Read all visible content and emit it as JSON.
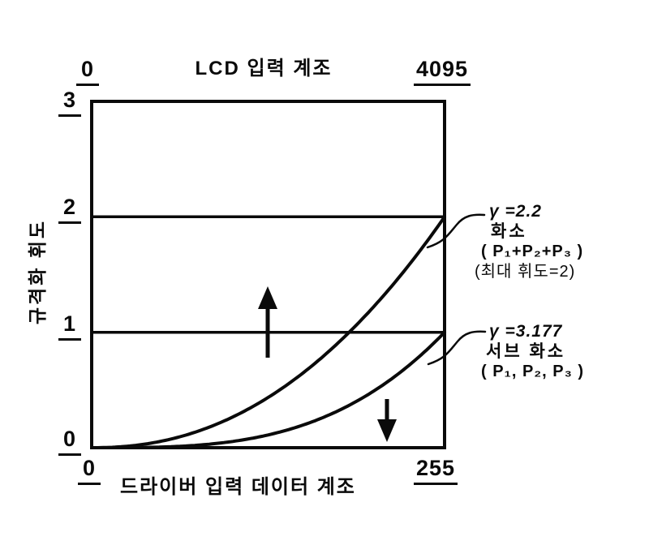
{
  "chart_data": {
    "type": "line",
    "title": "",
    "x_axis_top": {
      "label": "LCD 입력 계조",
      "tick_labels": [
        "0",
        "4095"
      ],
      "min": 0,
      "max": 4095
    },
    "x_axis_bottom": {
      "label": "드라이버 입력 데이터 계조",
      "tick_labels": [
        "0",
        "255"
      ],
      "min": 0,
      "max": 255
    },
    "y_axis": {
      "label": "규격화 휘도",
      "tick_labels": [
        "3",
        "2",
        "1",
        "0"
      ],
      "min": 0,
      "max": 3
    },
    "grid": false,
    "legend_position": "right-annotations",
    "reference_lines_y": [
      2,
      1
    ],
    "series": [
      {
        "name": "pixel-combined-gamma-curve",
        "gamma": 2.2,
        "max_luminance": 2,
        "annotation_lines": [
          "γ =2.2",
          "화소",
          "( P₁+P₂+P₃ )",
          "(최대 휘도=2)"
        ]
      },
      {
        "name": "sub-pixel-gamma-curve",
        "gamma": 3.177,
        "max_luminance": 1,
        "annotation_lines": [
          "γ =3.177",
          "서브 화소",
          "( P₁, P₂, P₃ )"
        ]
      }
    ],
    "arrows": [
      {
        "direction": "up"
      },
      {
        "direction": "down"
      }
    ]
  }
}
